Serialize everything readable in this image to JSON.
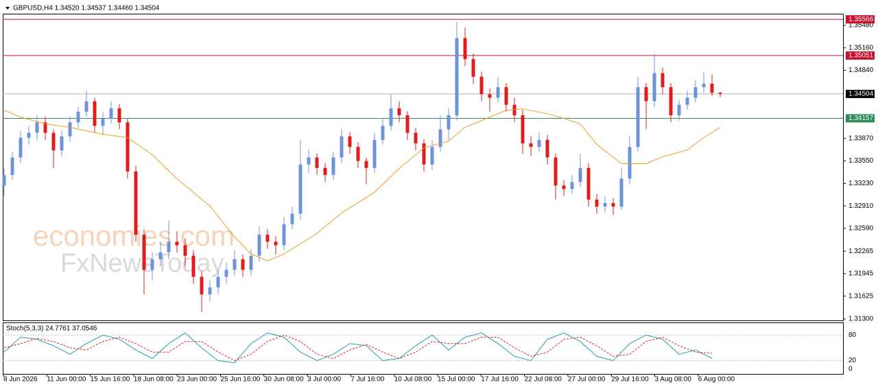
{
  "chart_data": [
    {
      "type": "candlestick",
      "header": "GBPUSD,H4  1.34520 1.34537 1.34460 1.34504",
      "ylim": [
        1.3128,
        1.35646
      ],
      "yticks": [
        {
          "value": 1.3548,
          "label": "1.35480"
        },
        {
          "value": 1.3516,
          "label": "1.35160"
        },
        {
          "value": 1.3484,
          "label": "1.34840"
        },
        {
          "value": 1.3387,
          "label": "1.33870"
        },
        {
          "value": 1.3355,
          "label": "1.33550"
        },
        {
          "value": 1.3323,
          "label": "1.33230"
        },
        {
          "value": 1.3291,
          "label": "1.32910"
        },
        {
          "value": 1.3259,
          "label": "1.32590"
        },
        {
          "value": 1.32265,
          "label": "1.32265"
        },
        {
          "value": 1.31945,
          "label": "1.31945"
        },
        {
          "value": 1.31625,
          "label": "1.31625"
        },
        {
          "value": 1.313,
          "label": "1.31300"
        }
      ],
      "up_color": "#6f93d8",
      "down_color": "#e01b1b",
      "ohlc": [
        [
          1.332,
          1.3345,
          1.3305,
          1.3335
        ],
        [
          1.3335,
          1.3368,
          1.3328,
          1.336
        ],
        [
          1.336,
          1.3398,
          1.3352,
          1.3388
        ],
        [
          1.3388,
          1.3405,
          1.3378,
          1.3395
        ],
        [
          1.3395,
          1.342,
          1.3385,
          1.341
        ],
        [
          1.341,
          1.3418,
          1.3385,
          1.3395
        ],
        [
          1.3395,
          1.34,
          1.3345,
          1.337
        ],
        [
          1.337,
          1.3398,
          1.3362,
          1.339
        ],
        [
          1.339,
          1.3418,
          1.3382,
          1.341
        ],
        [
          1.341,
          1.3432,
          1.3402,
          1.3425
        ],
        [
          1.3425,
          1.3455,
          1.3418,
          1.344
        ],
        [
          1.344,
          1.3445,
          1.3395,
          1.3405
        ],
        [
          1.3405,
          1.3425,
          1.3392,
          1.3415
        ],
        [
          1.3415,
          1.344,
          1.3408,
          1.343
        ],
        [
          1.343,
          1.3436,
          1.34,
          1.341
        ],
        [
          1.341,
          1.3415,
          1.333,
          1.334
        ],
        [
          1.334,
          1.3348,
          1.324,
          1.325
        ],
        [
          1.325,
          1.3258,
          1.3165,
          1.32
        ],
        [
          1.32,
          1.3225,
          1.3185,
          1.3215
        ],
        [
          1.3215,
          1.324,
          1.3205,
          1.3225
        ],
        [
          1.3225,
          1.327,
          1.3215,
          1.324
        ],
        [
          1.324,
          1.3255,
          1.3225,
          1.3235
        ],
        [
          1.3235,
          1.3245,
          1.3205,
          1.322
        ],
        [
          1.322,
          1.3228,
          1.318,
          1.319
        ],
        [
          1.319,
          1.3198,
          1.314,
          1.3165
        ],
        [
          1.3165,
          1.3185,
          1.3155,
          1.3175
        ],
        [
          1.3175,
          1.32,
          1.3165,
          1.319
        ],
        [
          1.319,
          1.321,
          1.318,
          1.32
        ],
        [
          1.32,
          1.3228,
          1.3192,
          1.3215
        ],
        [
          1.3215,
          1.3222,
          1.319,
          1.32
        ],
        [
          1.32,
          1.323,
          1.3192,
          1.322
        ],
        [
          1.322,
          1.3262,
          1.3212,
          1.325
        ],
        [
          1.325,
          1.3258,
          1.323,
          1.324
        ],
        [
          1.324,
          1.3248,
          1.3222,
          1.3235
        ],
        [
          1.3235,
          1.3275,
          1.3228,
          1.3265
        ],
        [
          1.3265,
          1.329,
          1.3258,
          1.328
        ],
        [
          1.328,
          1.3385,
          1.3272,
          1.335
        ],
        [
          1.335,
          1.3372,
          1.3338,
          1.336
        ],
        [
          1.336,
          1.3366,
          1.3335,
          1.3345
        ],
        [
          1.3345,
          1.3352,
          1.3325,
          1.3335
        ],
        [
          1.3335,
          1.3368,
          1.3328,
          1.336
        ],
        [
          1.336,
          1.34,
          1.3352,
          1.339
        ],
        [
          1.339,
          1.3396,
          1.3365,
          1.3375
        ],
        [
          1.3375,
          1.3382,
          1.3345,
          1.3355
        ],
        [
          1.3355,
          1.336,
          1.3322,
          1.3345
        ],
        [
          1.3345,
          1.3395,
          1.3338,
          1.3385
        ],
        [
          1.3385,
          1.3415,
          1.3378,
          1.3405
        ],
        [
          1.3405,
          1.345,
          1.3398,
          1.343
        ],
        [
          1.343,
          1.344,
          1.341,
          1.342
        ],
        [
          1.342,
          1.3426,
          1.3385,
          1.3395
        ],
        [
          1.3395,
          1.3402,
          1.337,
          1.338
        ],
        [
          1.338,
          1.3386,
          1.334,
          1.335
        ],
        [
          1.335,
          1.3385,
          1.3342,
          1.3375
        ],
        [
          1.3375,
          1.342,
          1.3368,
          1.34
        ],
        [
          1.34,
          1.343,
          1.3385,
          1.342
        ],
        [
          1.342,
          1.3553,
          1.3412,
          1.353
        ],
        [
          1.353,
          1.3545,
          1.349,
          1.35
        ],
        [
          1.35,
          1.3508,
          1.3465,
          1.3475
        ],
        [
          1.3475,
          1.3482,
          1.344,
          1.345
        ],
        [
          1.345,
          1.3458,
          1.3425,
          1.3445
        ],
        [
          1.3445,
          1.3475,
          1.3438,
          1.346
        ],
        [
          1.346,
          1.3466,
          1.3425,
          1.3435
        ],
        [
          1.3435,
          1.3445,
          1.341,
          1.342
        ],
        [
          1.342,
          1.3428,
          1.3365,
          1.338
        ],
        [
          1.338,
          1.339,
          1.3362,
          1.3375
        ],
        [
          1.3375,
          1.3395,
          1.3368,
          1.3385
        ],
        [
          1.3385,
          1.3392,
          1.335,
          1.336
        ],
        [
          1.336,
          1.3366,
          1.33,
          1.332
        ],
        [
          1.332,
          1.3328,
          1.3305,
          1.3315
        ],
        [
          1.3315,
          1.3335,
          1.3308,
          1.3325
        ],
        [
          1.3325,
          1.3365,
          1.3318,
          1.3345
        ],
        [
          1.3345,
          1.3352,
          1.329,
          1.33
        ],
        [
          1.33,
          1.3308,
          1.328,
          1.329
        ],
        [
          1.329,
          1.3305,
          1.3282,
          1.3295
        ],
        [
          1.3295,
          1.3302,
          1.3278,
          1.329
        ],
        [
          1.329,
          1.3345,
          1.3285,
          1.333
        ],
        [
          1.333,
          1.339,
          1.3322,
          1.3375
        ],
        [
          1.3375,
          1.3475,
          1.3368,
          1.346
        ],
        [
          1.346,
          1.3466,
          1.34,
          1.344
        ],
        [
          1.344,
          1.3508,
          1.3432,
          1.348
        ],
        [
          1.348,
          1.3488,
          1.345,
          1.346
        ],
        [
          1.346,
          1.3466,
          1.341,
          1.342
        ],
        [
          1.342,
          1.3442,
          1.3412,
          1.3435
        ],
        [
          1.3435,
          1.3455,
          1.3428,
          1.3445
        ],
        [
          1.3445,
          1.347,
          1.3438,
          1.346
        ],
        [
          1.346,
          1.3482,
          1.3452,
          1.3465
        ],
        [
          1.3465,
          1.3478,
          1.3448,
          1.3452
        ],
        [
          1.3452,
          1.34537,
          1.3446,
          1.34504
        ]
      ],
      "ma": {
        "color": "#e8a020",
        "x": [
          0,
          2,
          5,
          8,
          12,
          15,
          18,
          21,
          25,
          28,
          30,
          32,
          34,
          38,
          41,
          45,
          48,
          51,
          54,
          56,
          59,
          61,
          63,
          66,
          68,
          70,
          72,
          75,
          78,
          80,
          83,
          85,
          87
        ],
        "values": [
          1.34272,
          1.34175,
          1.34077,
          1.34028,
          1.33931,
          1.33882,
          1.33638,
          1.33297,
          1.32908,
          1.32469,
          1.32226,
          1.32128,
          1.32226,
          1.32518,
          1.3281,
          1.33103,
          1.33444,
          1.33736,
          1.33833,
          1.34028,
          1.34175,
          1.34272,
          1.34291,
          1.34223,
          1.34155,
          1.34077,
          1.33785,
          1.33512,
          1.33512,
          1.33609,
          1.33707,
          1.33882,
          1.34028
        ]
      },
      "levels": [
        {
          "value": 1.35566,
          "label": "1.35566",
          "color": "#c8102e"
        },
        {
          "value": 1.35051,
          "label": "1.35051",
          "color": "#c8102e"
        },
        {
          "value": 1.34504,
          "label": "1.34504",
          "color": "#000000"
        },
        {
          "value": 1.34157,
          "label": "1.34157",
          "color": "#2e8b57"
        }
      ],
      "watermark": [
        "economies.com",
        "FxNewsToday"
      ]
    },
    {
      "type": "stochastic",
      "title": "Stoch(5,3,3) 24.7761 37.0546",
      "ylim": [
        0,
        100
      ],
      "yticks": [
        80,
        20,
        0
      ],
      "categories": [
        "8 Jun 2026",
        "11 Jun 00:00",
        "15 Jun 16:00",
        "18 Jun 08:00",
        "23 Jun 00:00",
        "25 Jun 16:00",
        "30 Jun 08:00",
        "3 Jul 00:00",
        "7 Jul 16:00",
        "10 Jul 08:00",
        "15 Jul 00:00",
        "17 Jul 16:00",
        "22 Jul 08:00",
        "27 Jul 00:00",
        "29 Jul 16:00",
        "3 Aug 08:00",
        "6 Aug 00:00"
      ],
      "x": [
        0,
        2,
        4,
        6,
        8,
        10,
        12,
        14,
        16,
        18,
        20,
        22,
        24,
        26,
        28,
        30,
        32,
        34,
        36,
        38,
        40,
        42,
        44,
        46,
        48,
        50,
        52,
        54,
        56,
        58,
        60,
        62,
        64,
        66,
        68,
        70,
        72,
        74,
        76,
        78,
        80,
        82,
        84,
        86
      ],
      "series": [
        {
          "name": "main",
          "color": "#20a0b0",
          "values": [
            40,
            75,
            70,
            55,
            35,
            60,
            80,
            70,
            45,
            25,
            60,
            85,
            50,
            20,
            15,
            60,
            85,
            75,
            40,
            20,
            35,
            60,
            55,
            20,
            25,
            55,
            80,
            45,
            75,
            85,
            60,
            30,
            20,
            70,
            85,
            65,
            30,
            20,
            60,
            80,
            70,
            35,
            45,
            25
          ]
        },
        {
          "name": "signal",
          "color": "#e02020",
          "values": [
            50,
            60,
            72,
            65,
            50,
            45,
            65,
            75,
            60,
            40,
            40,
            65,
            65,
            40,
            20,
            35,
            65,
            80,
            65,
            35,
            25,
            45,
            58,
            40,
            25,
            40,
            65,
            60,
            60,
            75,
            75,
            50,
            30,
            40,
            70,
            75,
            55,
            30,
            35,
            65,
            75,
            55,
            40,
            37
          ]
        }
      ]
    }
  ]
}
